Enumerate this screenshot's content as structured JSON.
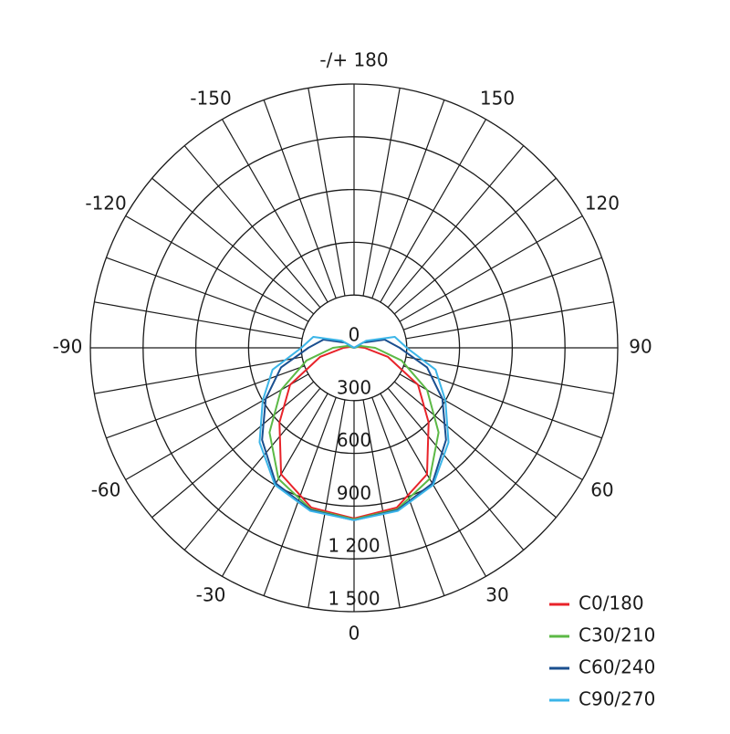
{
  "chart_data": {
    "type": "polar",
    "rlim": [
      0,
      1500
    ],
    "rticks": [
      0,
      300,
      600,
      900,
      {
        "value": 1200,
        "label": "1 200"
      },
      {
        "value": 1500,
        "label": "1 500"
      }
    ],
    "angle_ticks": [
      0,
      30,
      60,
      90,
      120,
      150,
      {
        "value": 180,
        "label": "-/+ 180"
      },
      -150,
      -120,
      -90,
      -60,
      -30
    ],
    "x": [
      -135,
      -120,
      -105,
      -90,
      -75,
      -60,
      -45,
      -30,
      -15,
      0,
      15,
      30,
      45,
      60,
      75,
      90,
      105,
      120,
      135
    ],
    "series": [
      {
        "name": "C0/180",
        "color": "#e8232a",
        "values": [
          0,
          0,
          20,
          60,
          200,
          420,
          600,
          830,
          940,
          970,
          940,
          830,
          600,
          420,
          200,
          60,
          20,
          0,
          0
        ]
      },
      {
        "name": "C30/210",
        "color": "#5cb946",
        "values": [
          0,
          0,
          40,
          120,
          280,
          480,
          680,
          860,
          950,
          975,
          950,
          860,
          680,
          480,
          280,
          120,
          40,
          0,
          0
        ]
      },
      {
        "name": "C60/240",
        "color": "#1a4f8f",
        "values": [
          0,
          60,
          180,
          260,
          430,
          580,
          740,
          890,
          955,
          980,
          955,
          890,
          740,
          580,
          430,
          260,
          180,
          60,
          0
        ]
      },
      {
        "name": "C90/270",
        "color": "#3bb5e8",
        "values": [
          0,
          80,
          240,
          300,
          480,
          600,
          760,
          900,
          960,
          980,
          960,
          900,
          760,
          600,
          480,
          300,
          240,
          80,
          0
        ]
      }
    ]
  }
}
